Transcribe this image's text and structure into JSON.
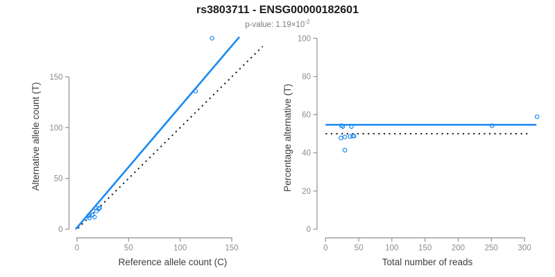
{
  "header": {
    "title": "rs3803711 - ENSG00000182601",
    "subtitle_label": "p-value: ",
    "subtitle_mantissa": "1.19×10",
    "subtitle_exponent": "-2"
  },
  "colors": {
    "accent_blue": "#1E8BF0",
    "axis_gray": "#909090",
    "tick_label_gray": "#8C8C8C",
    "axis_title_color": "#3D3D3D",
    "reference_line_black": "#1A1A1A"
  },
  "chart_data": [
    {
      "id": "allele-count-scatter",
      "type": "scatter",
      "xlabel": "Reference allele count (C)",
      "ylabel": "Alternative allele count (T)",
      "x_ticks": [
        0,
        50,
        100,
        150
      ],
      "y_ticks": [
        0,
        50,
        100,
        150
      ],
      "xlim": [
        -6,
        163
      ],
      "ylim": [
        -8,
        196
      ],
      "grid": false,
      "points": [
        [
          11,
          13
        ],
        [
          12,
          14
        ],
        [
          18,
          21
        ],
        [
          12,
          11
        ],
        [
          15,
          14
        ],
        [
          19,
          18
        ],
        [
          21,
          20
        ],
        [
          22,
          21
        ],
        [
          17,
          12
        ],
        [
          115,
          136
        ],
        [
          131,
          188
        ]
      ],
      "lines": [
        {
          "name": "identity-line",
          "style": "dotted",
          "color": "#1A1A1A",
          "x1": 1,
          "y1": 1,
          "x2": 180,
          "y2": 180
        },
        {
          "name": "fit-line",
          "style": "solid",
          "color": "#1E8BF0",
          "x1": -1.3,
          "y1": 0,
          "x2": 157.4,
          "y2": 189.3
        }
      ]
    },
    {
      "id": "percentage-vs-reads-scatter",
      "type": "scatter",
      "xlabel": "Total number of reads",
      "ylabel": "Percentage alternative (T)",
      "x_ticks": [
        0,
        50,
        100,
        150,
        200,
        250,
        300
      ],
      "y_ticks": [
        0,
        20,
        40,
        60,
        80,
        100
      ],
      "xlim": [
        -12,
        332
      ],
      "ylim": [
        -4,
        104
      ],
      "grid": false,
      "points": [
        [
          24,
          54.2
        ],
        [
          26,
          53.8
        ],
        [
          39,
          53.8
        ],
        [
          23,
          47.8
        ],
        [
          29,
          48.3
        ],
        [
          37,
          48.6
        ],
        [
          41,
          48.8
        ],
        [
          43,
          48.8
        ],
        [
          29,
          41.4
        ],
        [
          251,
          54.2
        ],
        [
          319,
          58.9
        ]
      ],
      "lines": [
        {
          "name": "reference-line",
          "style": "dotted",
          "color": "#1A1A1A",
          "x1": 0,
          "y1": 50,
          "x2": 310,
          "y2": 50
        },
        {
          "name": "mean-line",
          "style": "solid",
          "color": "#1E8BF0",
          "x1": 0,
          "y1": 54.7,
          "x2": 318,
          "y2": 54.7
        }
      ]
    }
  ]
}
